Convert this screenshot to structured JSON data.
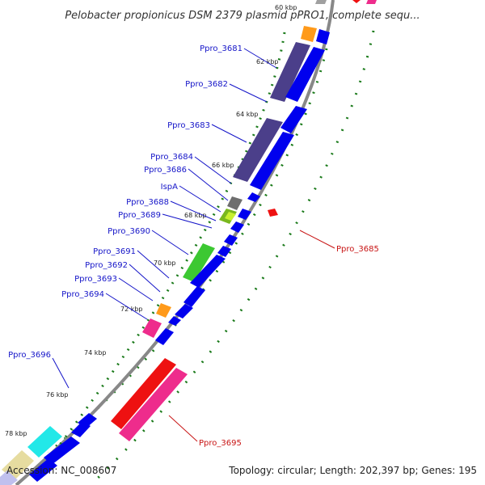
{
  "title": "Pelobacter propionicus DSM 2379 plasmid pPRO1, complete sequ...",
  "footer": {
    "accession": "Accession: NC_008607",
    "summary": "Topology: circular; Length: 202,397 bp; Genes: 195"
  },
  "kbp_labels": [
    "60 kbp",
    "62 kbp",
    "64 kbp",
    "66 kbp",
    "68 kbp",
    "70 kbp",
    "72 kbp",
    "74 kbp",
    "76 kbp",
    "78 kbp"
  ],
  "gene_labels": {
    "Ppro_3681": "Ppro_3681",
    "Ppro_3682": "Ppro_3682",
    "Ppro_3683": "Ppro_3683",
    "Ppro_3684": "Ppro_3684",
    "Ppro_3686": "Ppro_3686",
    "IspA": "IspA",
    "Ppro_3688": "Ppro_3688",
    "Ppro_3689": "Ppro_3689",
    "Ppro_3690": "Ppro_3690",
    "Ppro_3691": "Ppro_3691",
    "Ppro_3692": "Ppro_3692",
    "Ppro_3693": "Ppro_3693",
    "Ppro_3694": "Ppro_3694",
    "Ppro_3696": "Ppro_3696",
    "Ppro_3685": "Ppro_3685",
    "Ppro_3695": "Ppro_3695"
  },
  "colors": {
    "backbone": "#888888",
    "cds": "#0000ee",
    "tick": "#1a7a1a",
    "label_forward": "#1414c8",
    "label_reverse": "#c81414"
  }
}
